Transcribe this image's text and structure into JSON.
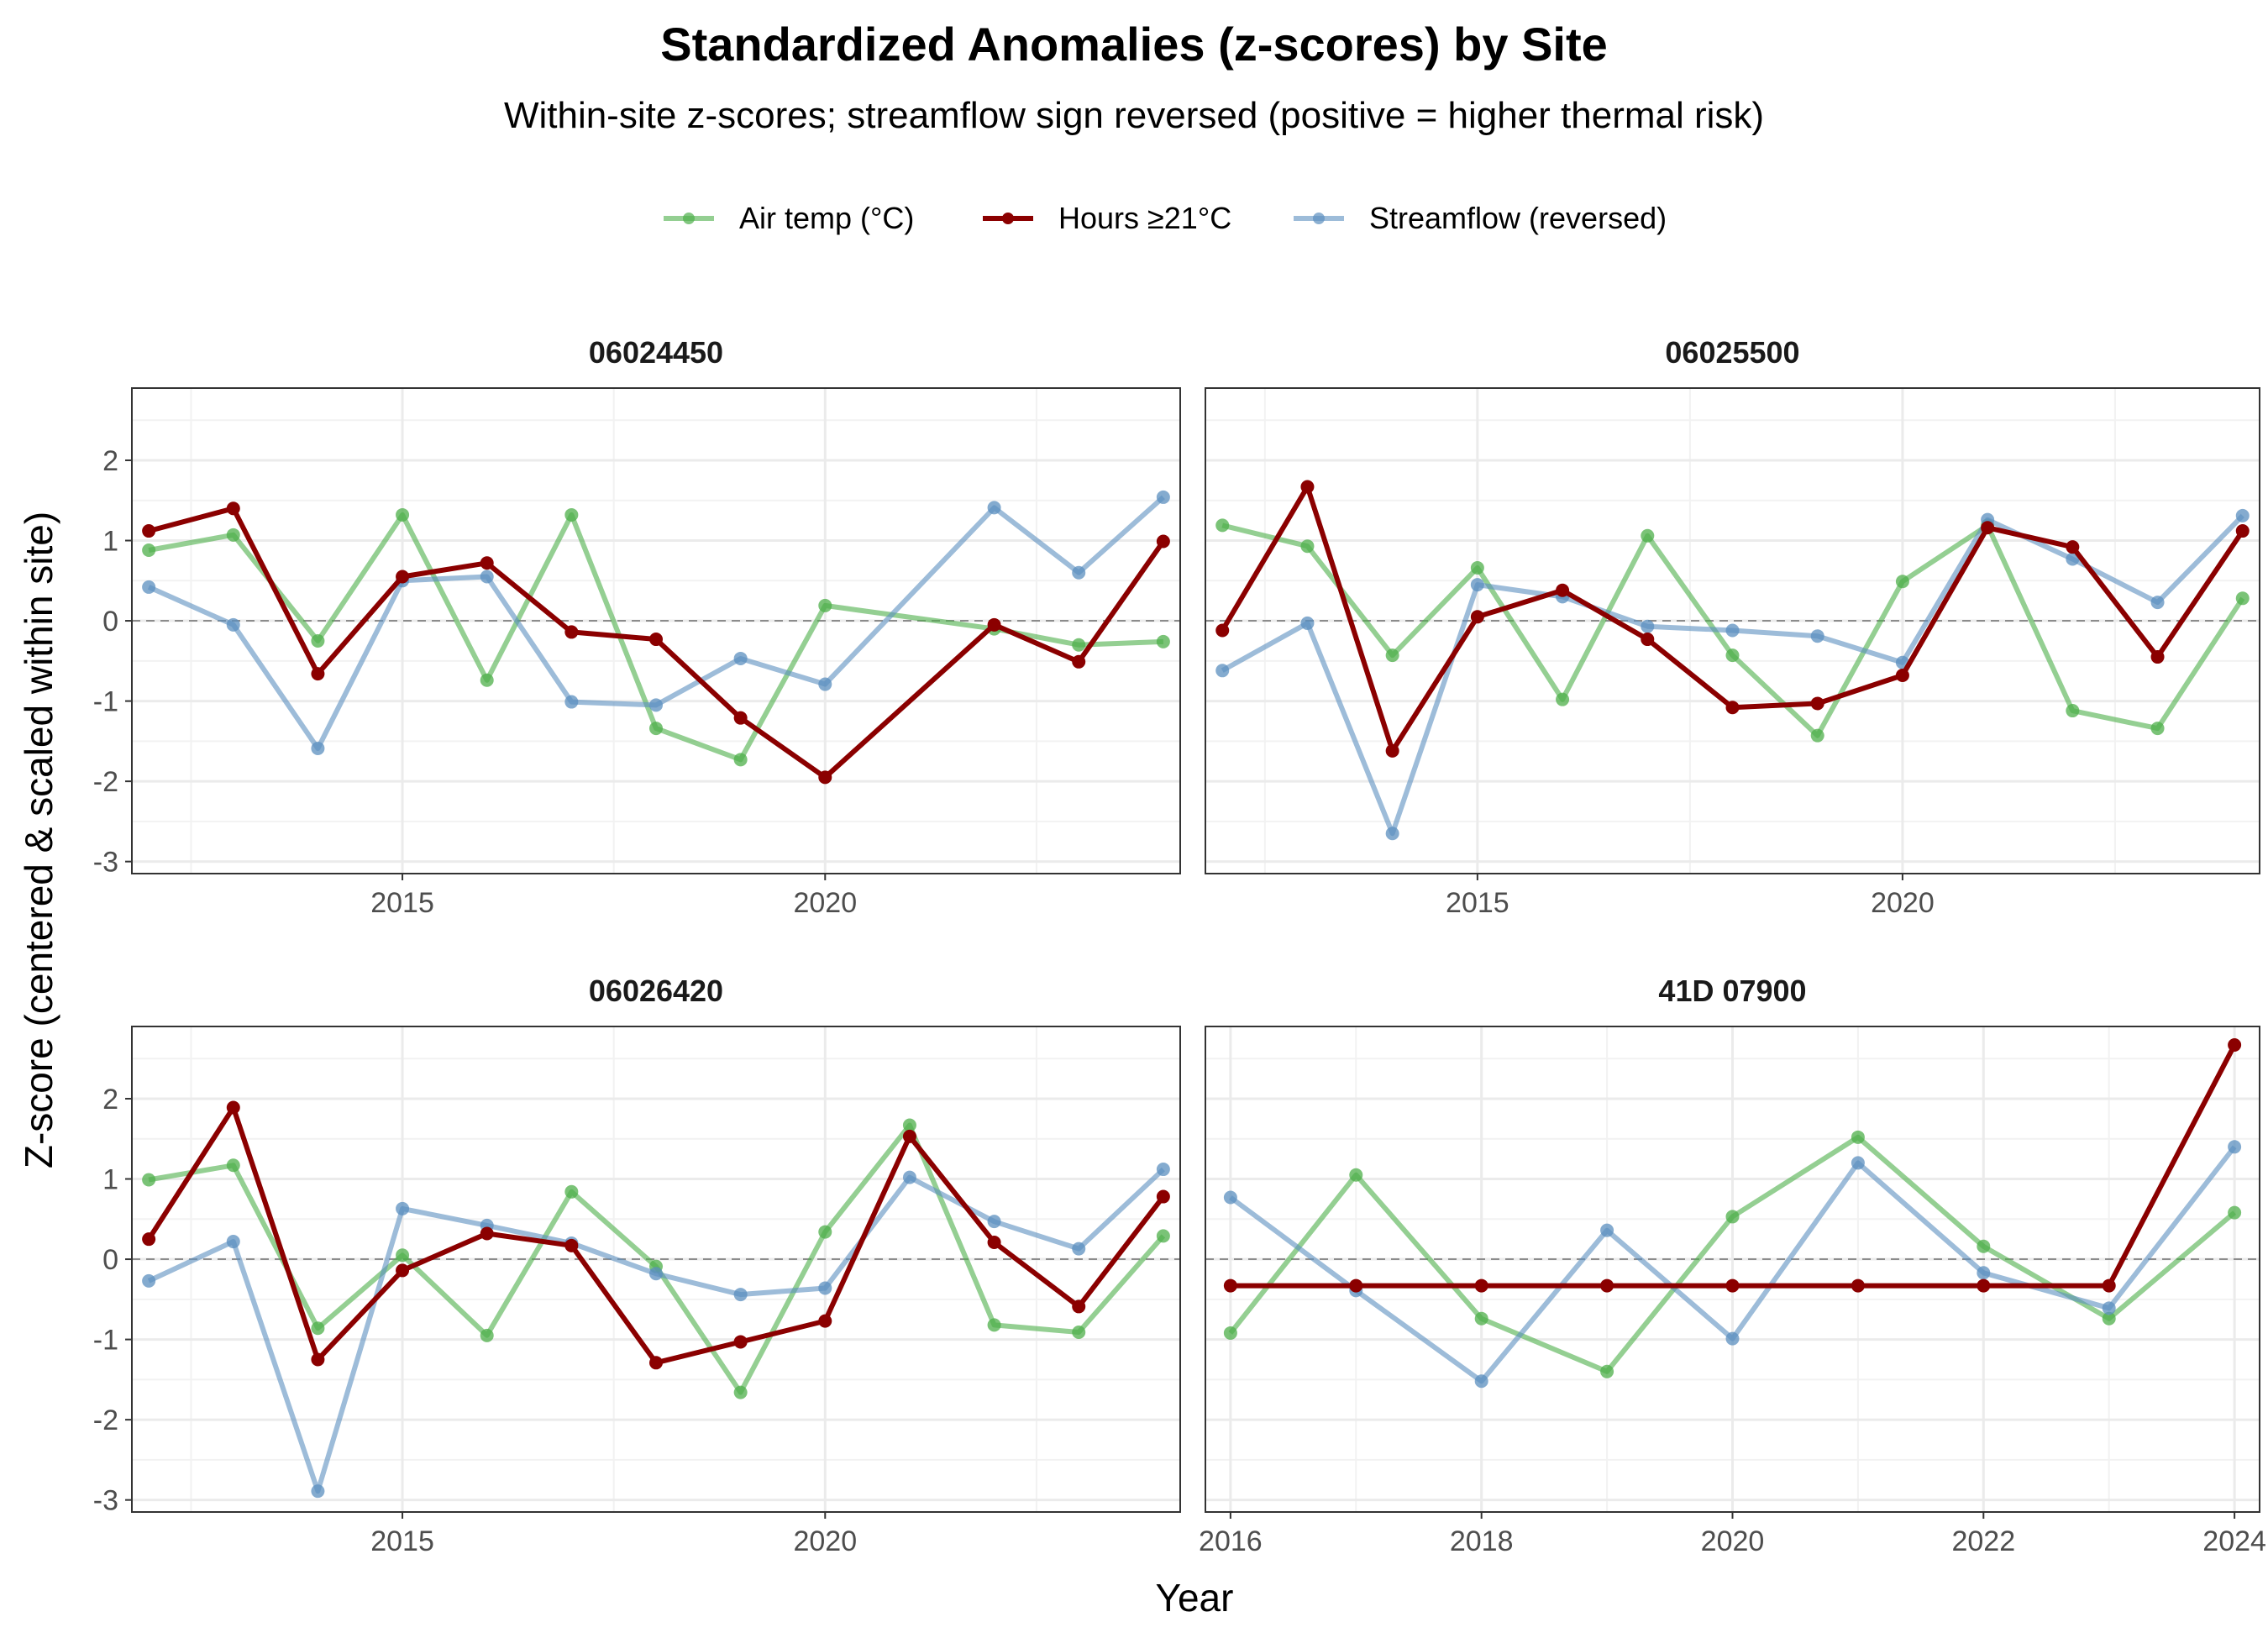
{
  "title": "Standardized Anomalies (z-scores) by Site",
  "subtitle": "Within-site z-scores; streamflow sign reversed (positive = higher thermal risk)",
  "xlabel": "Year",
  "ylabel": "Z-score (centered & scaled within site)",
  "legend": [
    {
      "name": "Air temp (°C)",
      "color": "#4daf4a"
    },
    {
      "name": "Hours ≥21°C",
      "color": "#8b0000"
    },
    {
      "name": "Streamflow (reversed)",
      "color": "#5b8fbf"
    }
  ],
  "chart_data": [
    {
      "type": "line",
      "panel": "06024450",
      "xlim": [
        2011.8,
        2024.2
      ],
      "ylim": [
        -3.15,
        2.9
      ],
      "xticks": [
        2015,
        2020
      ],
      "yticks": [
        2,
        1,
        0,
        -1,
        -2,
        -3
      ],
      "grid": true,
      "legend_position": "top",
      "series": [
        {
          "name": "Air temp (°C)",
          "x": [
            2012,
            2013,
            2014,
            2015,
            2016,
            2017,
            2018,
            2019,
            2020,
            2022,
            2023,
            2024
          ],
          "y": [
            0.88,
            1.07,
            -0.25,
            1.32,
            -0.74,
            1.32,
            -1.34,
            -1.73,
            0.19,
            -0.1,
            -0.3,
            -0.26
          ]
        },
        {
          "name": "Hours ≥21°C",
          "x": [
            2012,
            2013,
            2014,
            2015,
            2016,
            2017,
            2018,
            2019,
            2020,
            2022,
            2023,
            2024
          ],
          "y": [
            1.12,
            1.4,
            -0.66,
            0.55,
            0.72,
            -0.14,
            -0.23,
            -1.21,
            -1.95,
            -0.05,
            -0.51,
            0.99
          ]
        },
        {
          "name": "Streamflow (reversed)",
          "x": [
            2012,
            2013,
            2014,
            2015,
            2016,
            2017,
            2018,
            2019,
            2020,
            2022,
            2023,
            2024
          ],
          "y": [
            0.42,
            -0.05,
            -1.59,
            0.5,
            0.55,
            -1.01,
            -1.05,
            -0.47,
            -0.79,
            1.41,
            0.6,
            1.54
          ]
        }
      ]
    },
    {
      "type": "line",
      "panel": "06025500",
      "xlim": [
        2011.8,
        2024.2
      ],
      "ylim": [
        -3.15,
        2.9
      ],
      "xticks": [
        2015,
        2020
      ],
      "yticks": [
        2,
        1,
        0,
        -1,
        -2,
        -3
      ],
      "grid": true,
      "legend_position": "top",
      "series": [
        {
          "name": "Air temp (°C)",
          "x": [
            2012,
            2013,
            2014,
            2015,
            2016,
            2017,
            2018,
            2019,
            2020,
            2021,
            2022,
            2023,
            2024
          ],
          "y": [
            1.19,
            0.93,
            -0.43,
            0.66,
            -0.98,
            1.06,
            -0.43,
            -1.43,
            0.49,
            1.19,
            -1.12,
            -1.34,
            0.28
          ]
        },
        {
          "name": "Hours ≥21°C",
          "x": [
            2012,
            2013,
            2014,
            2015,
            2016,
            2017,
            2018,
            2019,
            2020,
            2021,
            2022,
            2023,
            2024
          ],
          "y": [
            -0.12,
            1.67,
            -1.62,
            0.05,
            0.38,
            -0.23,
            -1.08,
            -1.03,
            -0.68,
            1.16,
            0.92,
            -0.45,
            1.12
          ]
        },
        {
          "name": "Streamflow (reversed)",
          "x": [
            2012,
            2013,
            2014,
            2015,
            2016,
            2017,
            2018,
            2019,
            2020,
            2021,
            2022,
            2023,
            2024
          ],
          "y": [
            -0.62,
            -0.03,
            -2.65,
            0.45,
            0.3,
            -0.07,
            -0.12,
            -0.19,
            -0.52,
            1.26,
            0.77,
            0.23,
            1.31
          ]
        }
      ]
    },
    {
      "type": "line",
      "panel": "06026420",
      "xlim": [
        2011.8,
        2024.2
      ],
      "ylim": [
        -3.15,
        2.9
      ],
      "xticks": [
        2015,
        2020
      ],
      "yticks": [
        2,
        1,
        0,
        -1,
        -2,
        -3
      ],
      "grid": true,
      "legend_position": "top",
      "series": [
        {
          "name": "Air temp (°C)",
          "x": [
            2012,
            2013,
            2014,
            2015,
            2016,
            2017,
            2018,
            2019,
            2020,
            2021,
            2022,
            2023,
            2024
          ],
          "y": [
            0.99,
            1.17,
            -0.86,
            0.05,
            -0.95,
            0.84,
            -0.09,
            -1.66,
            0.34,
            1.67,
            -0.82,
            -0.91,
            0.29
          ]
        },
        {
          "name": "Hours ≥21°C",
          "x": [
            2012,
            2013,
            2014,
            2015,
            2016,
            2017,
            2018,
            2019,
            2020,
            2021,
            2022,
            2023,
            2024
          ],
          "y": [
            0.25,
            1.89,
            -1.25,
            -0.14,
            0.32,
            0.17,
            -1.29,
            -1.03,
            -0.77,
            1.53,
            0.21,
            -0.59,
            0.78
          ]
        },
        {
          "name": "Streamflow (reversed)",
          "x": [
            2012,
            2013,
            2014,
            2015,
            2016,
            2017,
            2018,
            2019,
            2020,
            2021,
            2022,
            2023,
            2024
          ],
          "y": [
            -0.27,
            0.22,
            -2.89,
            0.63,
            0.42,
            0.2,
            -0.18,
            -0.44,
            -0.36,
            1.02,
            0.47,
            0.13,
            1.12
          ]
        }
      ]
    },
    {
      "type": "line",
      "panel": "41D 07900",
      "xlim": [
        2015.8,
        2024.2
      ],
      "ylim": [
        -3.15,
        2.9
      ],
      "xticks": [
        2016,
        2018,
        2020,
        2022,
        2024
      ],
      "yticks": [
        2,
        1,
        0,
        -1,
        -2,
        -3
      ],
      "grid": true,
      "legend_position": "top",
      "series": [
        {
          "name": "Air temp (°C)",
          "x": [
            2016,
            2017,
            2018,
            2019,
            2020,
            2021,
            2022,
            2023,
            2024
          ],
          "y": [
            -0.92,
            1.05,
            -0.74,
            -1.4,
            0.53,
            1.52,
            0.16,
            -0.74,
            0.58
          ]
        },
        {
          "name": "Hours ≥21°C",
          "x": [
            2016,
            2017,
            2018,
            2019,
            2020,
            2021,
            2022,
            2023,
            2024
          ],
          "y": [
            -0.33,
            -0.33,
            -0.33,
            -0.33,
            -0.33,
            -0.33,
            -0.33,
            -0.33,
            2.67
          ]
        },
        {
          "name": "Streamflow (reversed)",
          "x": [
            2016,
            2017,
            2018,
            2019,
            2020,
            2021,
            2022,
            2023,
            2024
          ],
          "y": [
            0.77,
            -0.39,
            -1.52,
            0.36,
            -0.99,
            1.2,
            -0.17,
            -0.61,
            1.4
          ]
        }
      ]
    }
  ]
}
